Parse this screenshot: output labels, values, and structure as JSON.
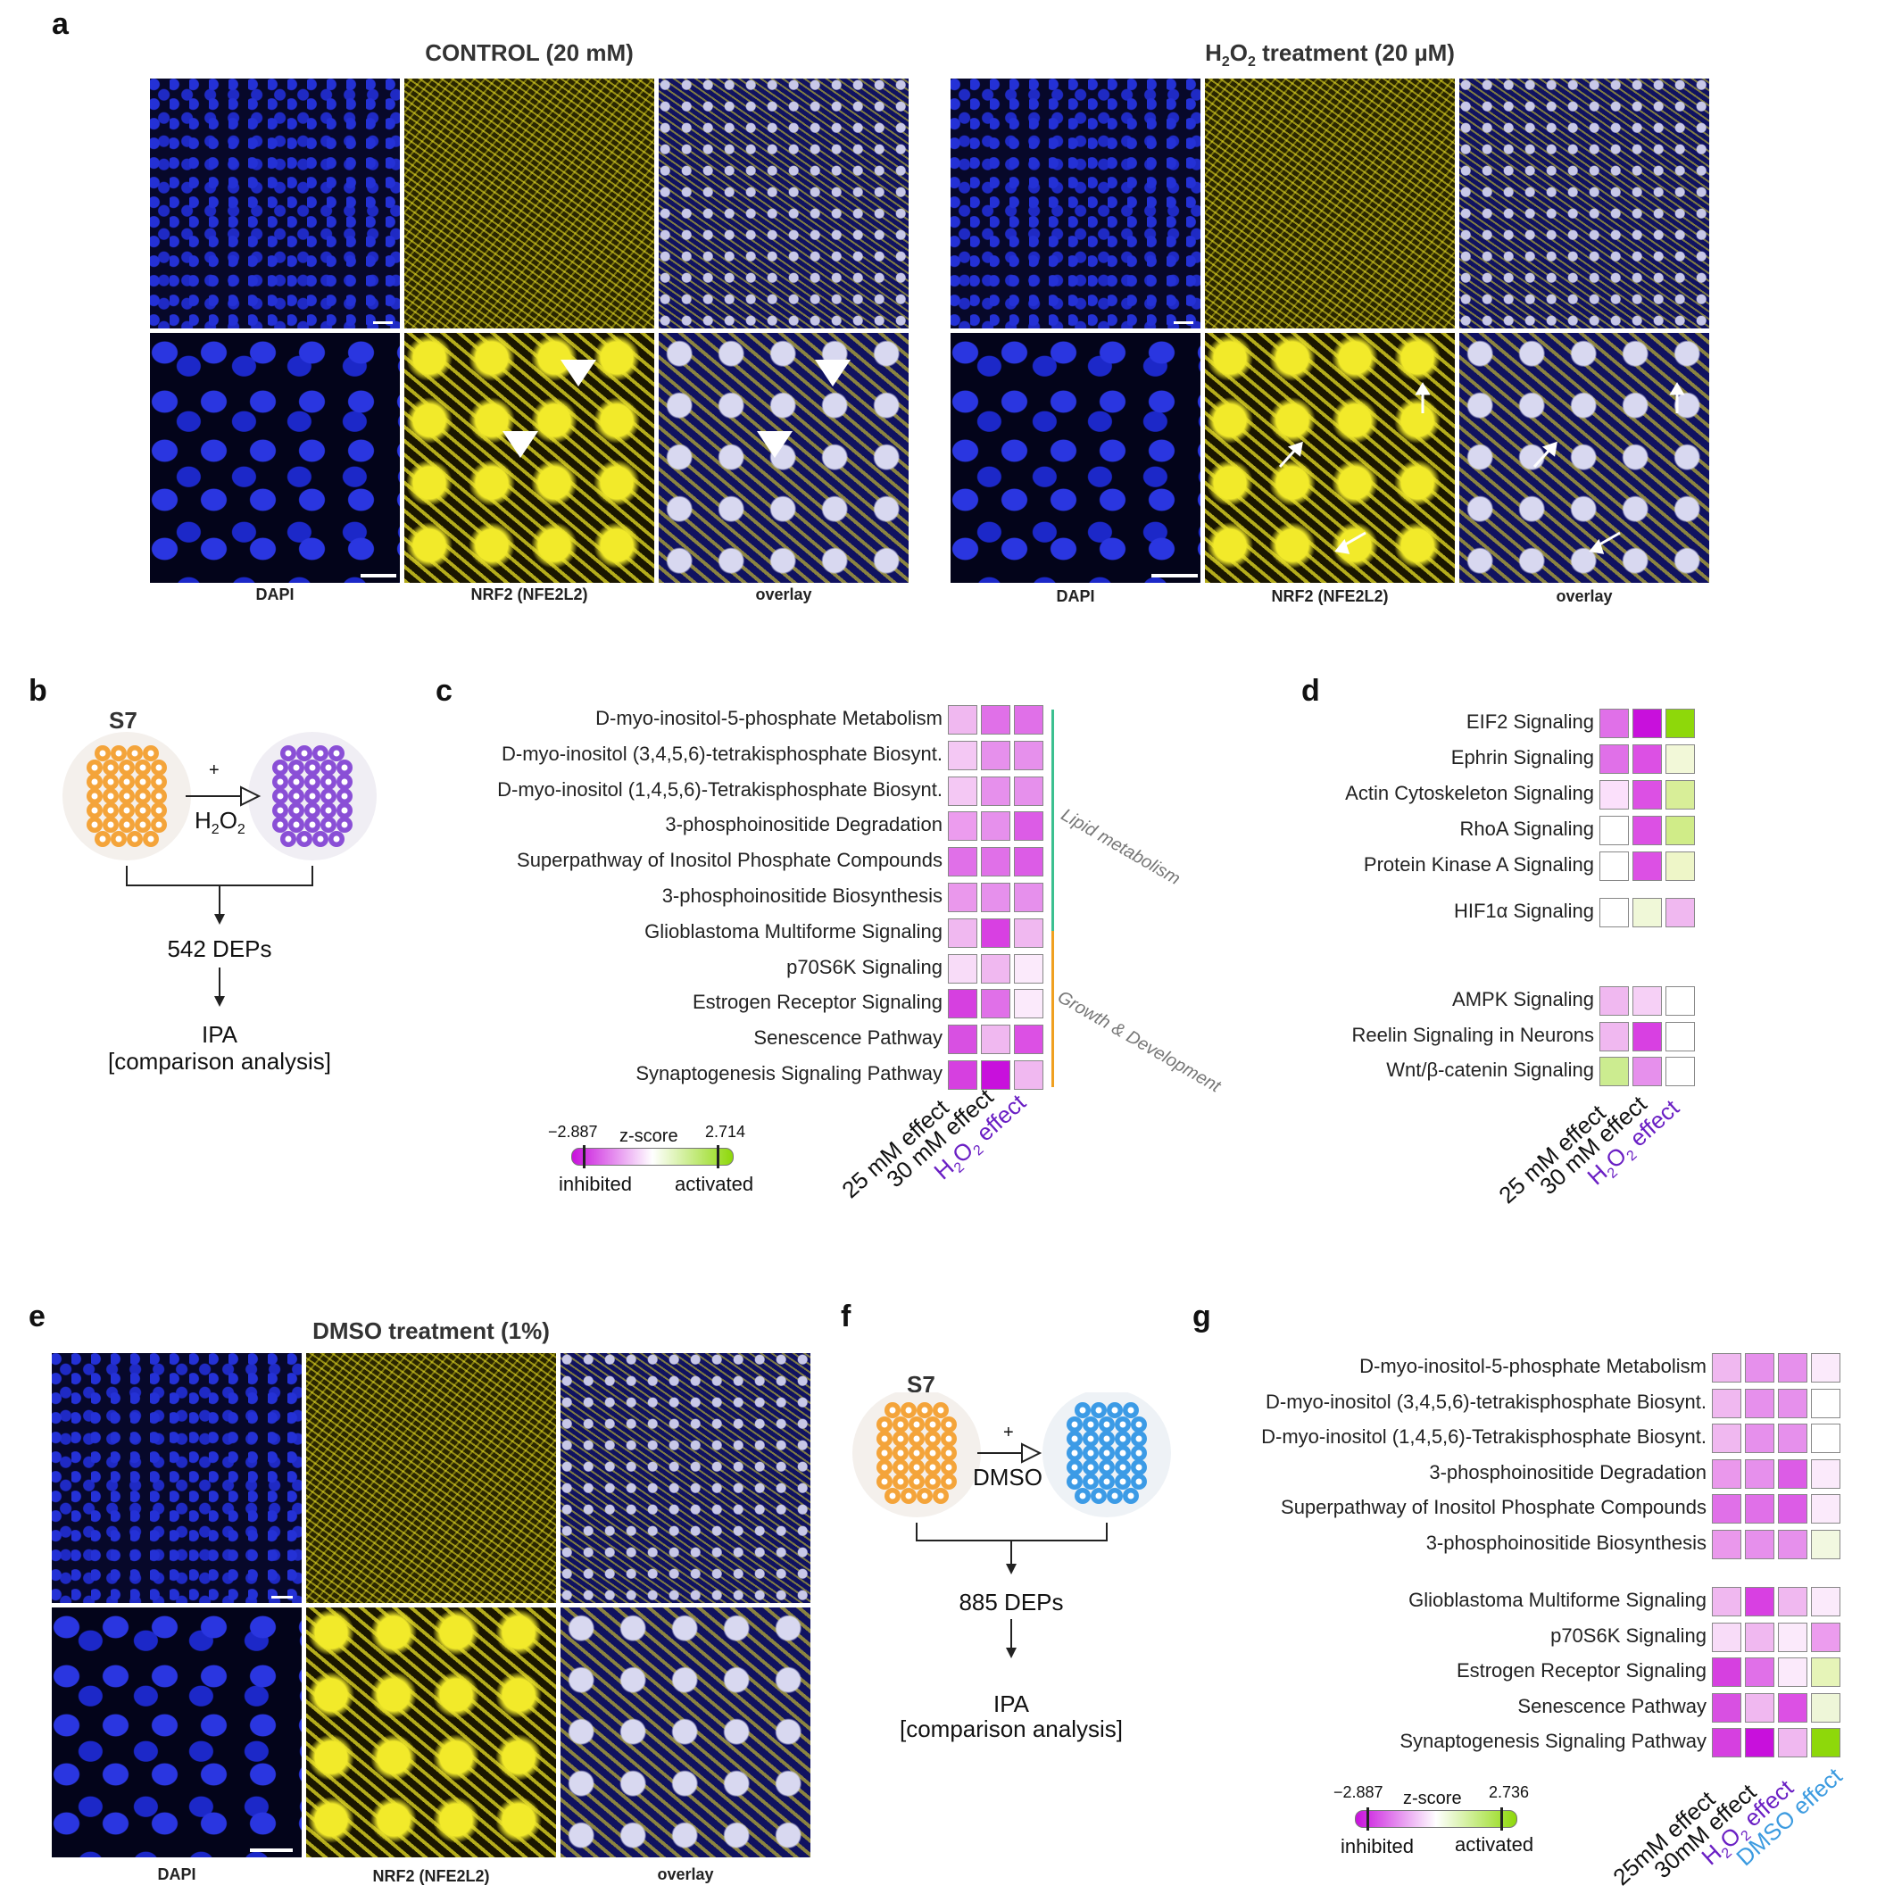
{
  "panels": {
    "a": {
      "label": "a",
      "control_title": "CONTROL (20 mM)",
      "h2o2_title_main": "H",
      "h2o2_title_sub1": "2",
      "h2o2_title_mid": "O",
      "h2o2_title_sub2": "2",
      "h2o2_title_rest": " treatment (20 µM)",
      "captions": [
        "DAPI",
        "NRF2 (NFE2L2)",
        "overlay"
      ]
    },
    "b": {
      "label": "b",
      "organoid": "S7",
      "plus": "+",
      "treatment_main": "H",
      "treatment_sub1": "2",
      "treatment_mid": "O",
      "treatment_sub2": "2",
      "deps": "542 DEPs",
      "ipa": "IPA",
      "ipa_sub": "[comparison analysis]"
    },
    "c": {
      "label": "c",
      "rows": [
        "D-myo-inositol-5-phosphate Metabolism",
        "D-myo-inositol (3,4,5,6)-tetrakisphosphate Biosynt.",
        "D-myo-inositol (1,4,5,6)-Tetrakisphosphate Biosynt.",
        "3-phosphoinositide Degradation",
        "Superpathway of Inositol Phosphate Compounds",
        "3-phosphoinositide Biosynthesis",
        "Glioblastoma Multiforme Signaling",
        "p70S6K Signaling",
        "Estrogen Receptor Signaling",
        "Senescence Pathway",
        "Synaptogenesis Signaling Pathway"
      ],
      "colors": [
        [
          "#f0b8f0",
          "#e070e8",
          "#e070e8"
        ],
        [
          "#f4c8f4",
          "#e690ec",
          "#e690ec"
        ],
        [
          "#f4c8f4",
          "#e690ec",
          "#e690ec"
        ],
        [
          "#ec9cee",
          "#e690ec",
          "#dc5ce6"
        ],
        [
          "#e070e8",
          "#e070e8",
          "#dc5ce6"
        ],
        [
          "#ea98ec",
          "#e690ec",
          "#e690ec"
        ],
        [
          "#f0b8f0",
          "#d840e2",
          "#f0b8f0"
        ],
        [
          "#f8dcf8",
          "#f0b8f0",
          "#fbeafb"
        ],
        [
          "#d640e0",
          "#e070e8",
          "#fbeafb"
        ],
        [
          "#d850e2",
          "#f0b8f0",
          "#dc50e4"
        ],
        [
          "#d640e0",
          "#c810dc",
          "#f0b8f0"
        ]
      ],
      "group1": "Lipid metabolism",
      "group2": "Growth & Development",
      "cols": [
        "25 mM effect",
        "30 mM effect"
      ],
      "col3_main": "H",
      "col3_sub1": "2",
      "col3_mid": "O",
      "col3_sub2": "2",
      "col3_rest": " effect",
      "legend": {
        "min": "−2.887",
        "title": "z-score",
        "max": "2.714",
        "left": "inhibited",
        "right": "activated"
      }
    },
    "d": {
      "label": "d",
      "rows": [
        "EIF2 Signaling",
        "Ephrin Signaling",
        "Actin Cytoskeleton Signaling",
        "RhoA Signaling",
        "Protein Kinase A Signaling",
        "HIF1α Signaling",
        "AMPK Signaling",
        "Reelin Signaling in Neurons",
        "Wnt/β-catenin Signaling"
      ],
      "colors": [
        [
          "#e070e8",
          "#c810dc",
          "#8ed80a"
        ],
        [
          "#e070e8",
          "#dc50e4",
          "#f2f8d8"
        ],
        [
          "#fbe0fb",
          "#dc50e4",
          "#d8ee98"
        ],
        [
          "#ffffff",
          "#dc50e4",
          "#d0ec88"
        ],
        [
          "#ffffff",
          "#dc50e4",
          "#eef6c8"
        ],
        [
          "#ffffff",
          "#f0f8d8",
          "#f0b8f0"
        ],
        [
          "#f0b8f0",
          "#f6d0f6",
          "#ffffff"
        ],
        [
          "#f0b8f0",
          "#d840e2",
          "#ffffff"
        ],
        [
          "#ccec90",
          "#e690ec",
          "#ffffff"
        ]
      ],
      "cols": [
        "25 mM effect",
        "30 mM effect"
      ],
      "col3_main": "H",
      "col3_sub1": "2",
      "col3_mid": "O",
      "col3_sub2": "2",
      "col3_rest": " effect"
    },
    "e": {
      "label": "e",
      "title": "DMSO treatment (1%)",
      "captions": [
        "DAPI",
        "NRF2 (NFE2L2)",
        "overlay"
      ]
    },
    "f": {
      "label": "f",
      "organoid": "S7",
      "plus": "+",
      "treatment": "DMSO",
      "deps": "885 DEPs",
      "ipa": "IPA",
      "ipa_sub": "[comparison analysis]"
    },
    "g": {
      "label": "g",
      "rows": [
        "D-myo-inositol-5-phosphate Metabolism",
        "D-myo-inositol (3,4,5,6)-tetrakisphosphate Biosynt.",
        "D-myo-inositol (1,4,5,6)-Tetrakisphosphate Biosynt.",
        "3-phosphoinositide Degradation",
        "Superpathway of Inositol Phosphate Compounds",
        "3-phosphoinositide Biosynthesis",
        "Glioblastoma Multiforme Signaling",
        "p70S6K Signaling",
        "Estrogen Receptor Signaling",
        "Senescence Pathway",
        "Synaptogenesis Signaling Pathway"
      ],
      "colors": [
        [
          "#f0b8f0",
          "#e690ec",
          "#e690ec",
          "#fbeafb"
        ],
        [
          "#f0b8f0",
          "#e690ec",
          "#e690ec",
          "#ffffff"
        ],
        [
          "#f0b8f0",
          "#e690ec",
          "#e690ec",
          "#ffffff"
        ],
        [
          "#ea98ec",
          "#e690ec",
          "#dc5ce6",
          "#fbeafb"
        ],
        [
          "#e070e8",
          "#e070e8",
          "#dc5ce6",
          "#fbeafb"
        ],
        [
          "#ea98ec",
          "#e690ec",
          "#e690ec",
          "#f2f8e0"
        ],
        [
          "#f0b8f0",
          "#d840e2",
          "#f0b8f0",
          "#fbeafb"
        ],
        [
          "#f8dcf8",
          "#f0b8f0",
          "#fbeafb",
          "#ec9cee"
        ],
        [
          "#d640e0",
          "#e070e8",
          "#fbeafb",
          "#e6f4b8"
        ],
        [
          "#d850e2",
          "#f0b8f0",
          "#dc50e4",
          "#eef6d8"
        ],
        [
          "#d640e0",
          "#c810dc",
          "#f0b8f0",
          "#8ed80a"
        ]
      ],
      "cols": [
        "25mM effect",
        "30mM effect"
      ],
      "col3_main": "H",
      "col3_sub1": "2",
      "col3_mid": "O",
      "col3_sub2": "2",
      "col3_rest": " effect",
      "col4": "DMSO effect",
      "legend": {
        "min": "−2.887",
        "title": "z-score",
        "max": "2.736",
        "left": "inhibited",
        "right": "activated"
      }
    }
  },
  "colors": {
    "purple_text": "#6a1fc4",
    "blue_text": "#3c9be0",
    "orange": "#f4a43a",
    "violet": "#8a4fd6",
    "blue_org": "#3c9be6",
    "green_line": "#3cc090",
    "orange_line": "#f0a020"
  }
}
